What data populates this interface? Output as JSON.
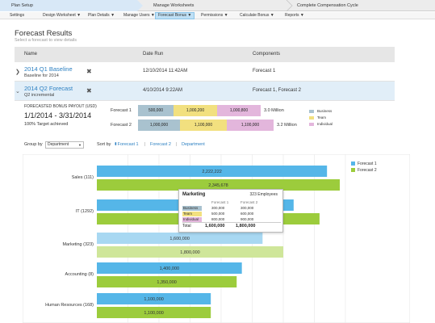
{
  "wizard": {
    "steps": [
      "Plan Setup",
      "Manage Worksheets",
      "Complete Compensation Cycle"
    ]
  },
  "subnav": {
    "items": [
      "Settings",
      "Design Worksheet ▼",
      "Plan Details ▼",
      "Manage Users ▼",
      "Forecast Bonus ▼",
      "Permissions ▼",
      "Calculate Bonus ▼",
      "Reports ▼"
    ],
    "active_index": 4
  },
  "page": {
    "title": "Forecast Results",
    "subtitle": "Select a forecast to view details"
  },
  "table": {
    "headers": {
      "name": "Name",
      "date": "Date Run",
      "components": "Components"
    },
    "rows": [
      {
        "name": "2014 Q1 Baseline",
        "desc": "Baseline for 2014",
        "date": "12/10/2014 11:42AM",
        "components": "Forecast 1",
        "expanded": false
      },
      {
        "name": "2014 Q2 Forecast",
        "desc": "Q2 incremental",
        "date": "4/10/2014 9:22AM",
        "components": "Forecast 1, Forecast 2",
        "expanded": true
      }
    ]
  },
  "payout": {
    "label": "FORECASTED BONUS PAYOUT (USD)",
    "date_range": "1/1/2014  -  3/31/2014",
    "target": "100% Target achieved",
    "rows": [
      {
        "label": "Forecast 1",
        "segments": [
          "500,000",
          "1,000,200",
          "1,000,800"
        ],
        "total": "3.0 Million"
      },
      {
        "label": "Forecast 2",
        "segments": [
          "1,000,000",
          "1,100,000",
          "1,100,000"
        ],
        "total": "3.2 Million"
      }
    ],
    "legend": [
      "Business",
      "Team",
      "Individual"
    ],
    "colors": {
      "business": "#a9c2cf",
      "team": "#f2e07f",
      "individual": "#e3b6dc"
    }
  },
  "controls": {
    "group_by_label": "Group by",
    "group_by_value": "Department",
    "sort_by_label": "Sort by",
    "sort_options": [
      "⬍Forecast 1",
      "Forecast 2",
      "Department"
    ]
  },
  "chart_data": {
    "type": "bar",
    "orientation": "horizontal",
    "categories": [
      "Sales (111)",
      "IT (1292)",
      "Marketing (323)",
      "Accounting (8)",
      "Human Resources (168)"
    ],
    "series": [
      {
        "name": "Forecast 1",
        "values": [
          2222222,
          1900000,
          1600000,
          1400000,
          1100000
        ],
        "labels": [
          "2,222,222",
          "",
          "1,600,000",
          "1,400,000",
          "1,100,000"
        ]
      },
      {
        "name": "Forecast 2",
        "values": [
          2345678,
          2150000,
          1800000,
          1350000,
          1100000
        ],
        "labels": [
          "2,345,678",
          "",
          "1,800,000",
          "1,350,000",
          "1,100,000"
        ]
      }
    ],
    "xlim": [
      0,
      2400000
    ],
    "grid": true,
    "legend_position": "top-right",
    "colors": {
      "forecast1": "#55b6e8",
      "forecast2": "#9ccc3c",
      "forecast1_hover": "#a8d8f2",
      "forecast2_hover": "#cfe69a"
    },
    "highlighted_index": 2
  },
  "tooltip": {
    "title": "Marketing",
    "employees": "323 Employees",
    "col1": "Forecast 1",
    "col2": "Forecast 2",
    "rows": [
      {
        "label": "Business",
        "v1": "300,000",
        "v2": "300,000"
      },
      {
        "label": "Team",
        "v1": "500,000",
        "v2": "600,000"
      },
      {
        "label": "Individual",
        "v1": "800,000",
        "v2": "900,000"
      }
    ],
    "total_label": "Total",
    "total_v1": "1,600,000",
    "total_v2": "1,800,000"
  }
}
